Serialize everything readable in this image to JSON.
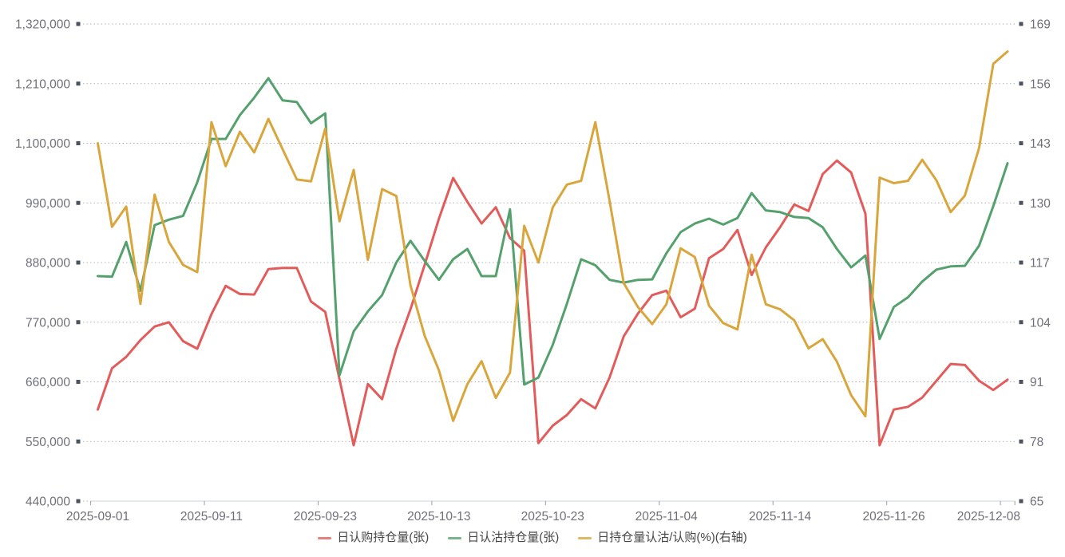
{
  "chart_data": {
    "type": "line",
    "title": "",
    "categories": [
      "2025-09-01",
      "2025-09-02",
      "2025-09-03",
      "2025-09-04",
      "2025-09-05",
      "2025-09-08",
      "2025-09-09",
      "2025-09-10",
      "2025-09-11",
      "2025-09-12",
      "2025-09-15",
      "2025-09-16",
      "2025-09-17",
      "2025-09-18",
      "2025-09-19",
      "2025-09-22",
      "2025-09-23",
      "2025-09-24",
      "2025-09-25",
      "2025-09-26",
      "2025-09-29",
      "2025-09-30",
      "2025-10-09",
      "2025-10-10",
      "2025-10-13",
      "2025-10-14",
      "2025-10-15",
      "2025-10-16",
      "2025-10-17",
      "2025-10-20",
      "2025-10-21",
      "2025-10-22",
      "2025-10-23",
      "2025-10-24",
      "2025-10-27",
      "2025-10-28",
      "2025-10-29",
      "2025-10-30",
      "2025-10-31",
      "2025-11-03",
      "2025-11-04",
      "2025-11-05",
      "2025-11-06",
      "2025-11-07",
      "2025-11-10",
      "2025-11-11",
      "2025-11-12",
      "2025-11-13",
      "2025-11-14",
      "2025-11-17",
      "2025-11-18",
      "2025-11-19",
      "2025-11-20",
      "2025-11-21",
      "2025-11-24",
      "2025-11-25",
      "2025-11-26",
      "2025-11-27",
      "2025-11-28",
      "2025-12-01",
      "2025-12-02",
      "2025-12-03",
      "2025-12-04",
      "2025-12-05",
      "2025-12-08"
    ],
    "x_axis": {
      "label_indices": [
        0,
        8,
        16,
        24,
        32,
        40,
        48,
        56,
        64
      ],
      "labels_shown": [
        "2025-09-01",
        "2025-09-11",
        "2025-09-23",
        "2025-10-13",
        "2025-10-23",
        "2025-11-04",
        "2025-11-14",
        "2025-11-26",
        "2025-12-08"
      ]
    },
    "left_axis": {
      "min": 440000,
      "max": 1320000,
      "ticks": [
        440000,
        550000,
        660000,
        770000,
        880000,
        990000,
        1100000,
        1210000,
        1320000
      ]
    },
    "right_axis": {
      "min": 65,
      "max": 169,
      "ticks": [
        65,
        78,
        91,
        104,
        117,
        130,
        143,
        156,
        169
      ]
    },
    "grid": {
      "horizontal_dotted": true,
      "legend_position": "bottom"
    },
    "series": [
      {
        "name": "日认购持仓量(张)",
        "axis": "left",
        "color": "#E25C5C",
        "values": [
          609000,
          685000,
          706000,
          737000,
          762000,
          770000,
          735000,
          721000,
          785000,
          837000,
          822000,
          821000,
          868000,
          870000,
          870000,
          808000,
          789000,
          665000,
          543000,
          656000,
          628000,
          721000,
          794000,
          876000,
          961000,
          1036000,
          992000,
          952000,
          982000,
          925000,
          902000,
          547000,
          579000,
          599000,
          628000,
          611000,
          668000,
          744000,
          786000,
          820000,
          828000,
          779000,
          795000,
          888000,
          905000,
          940000,
          857000,
          908000,
          945000,
          987000,
          975000,
          1043000,
          1068000,
          1046000,
          970000,
          543000,
          609000,
          614000,
          631000,
          662000,
          693000,
          691000,
          662000,
          645000,
          664000
        ]
      },
      {
        "name": "日认沽持仓量(张)",
        "axis": "left",
        "color": "#55A16D",
        "values": [
          855000,
          854000,
          918000,
          828000,
          949000,
          959000,
          966000,
          1028000,
          1108000,
          1108000,
          1152000,
          1184000,
          1220000,
          1179000,
          1176000,
          1137000,
          1155000,
          672000,
          753000,
          790000,
          820000,
          880000,
          920000,
          883000,
          848000,
          886000,
          905000,
          855000,
          855000,
          978000,
          655000,
          668000,
          728000,
          804000,
          886000,
          875000,
          848000,
          843000,
          848000,
          849000,
          897000,
          936000,
          952000,
          961000,
          950000,
          962000,
          1008000,
          976000,
          973000,
          964000,
          962000,
          945000,
          905000,
          871000,
          893000,
          739000,
          798000,
          816000,
          845000,
          867000,
          873000,
          874000,
          911000,
          984000,
          1063000
        ]
      },
      {
        "name": "日持仓量认沽/认购(%)(右轴)",
        "axis": "right",
        "color": "#D8A63C",
        "values": [
          143.0,
          124.8,
          129.2,
          108.0,
          131.8,
          121.5,
          116.5,
          114.9,
          147.6,
          138.0,
          145.5,
          141.0,
          148.3,
          141.7,
          135.1,
          134.7,
          146.2,
          126.0,
          137.2,
          117.6,
          133.0,
          131.5,
          112.0,
          101.0,
          93.5,
          82.5,
          90.5,
          95.5,
          87.5,
          93.0,
          125.0,
          117.0,
          129.0,
          134.0,
          134.8,
          147.6,
          130.5,
          112.5,
          107.3,
          103.6,
          107.9,
          120.1,
          118.2,
          107.6,
          103.8,
          102.4,
          118.7,
          107.9,
          106.8,
          104.4,
          98.3,
          100.3,
          95.4,
          88.1,
          83.5,
          135.5,
          134.3,
          134.8,
          139.4,
          134.9,
          128.0,
          131.6,
          142.0,
          160.3,
          163.0
        ]
      }
    ]
  },
  "legend": {
    "items": [
      {
        "label": "日认购持仓量(张)",
        "color": "#E25C5C"
      },
      {
        "label": "日认沽持仓量(张)",
        "color": "#55A16D"
      },
      {
        "label": "日持仓量认沽/认购(%)(右轴)",
        "color": "#D8A63C"
      }
    ]
  },
  "style": {
    "axis_label_color": "#6E7079",
    "axis_tick_square_color": "#4C5260",
    "axis_line_color": "#CBD0D8",
    "x_tick_color": "#999DA5",
    "gridline_color": "#AEB1B9",
    "legend_text_color": "#464646",
    "background": "#FFFFFF"
  }
}
